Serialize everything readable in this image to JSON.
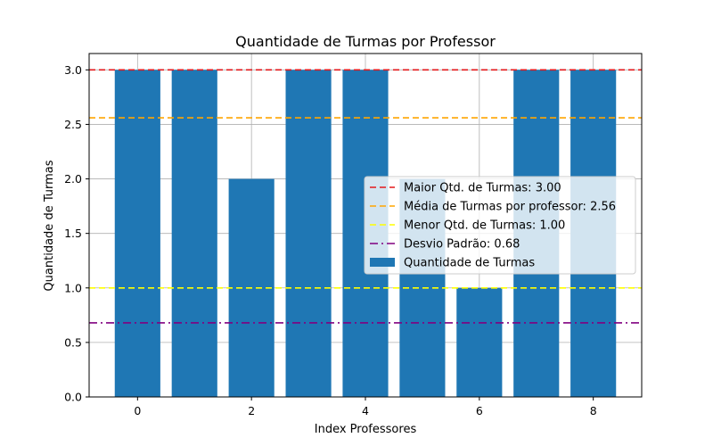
{
  "chart_data": {
    "type": "bar",
    "title": "Quantidade de Turmas por Professor",
    "xlabel": "Index Professores",
    "ylabel": "Quantidade de Turmas",
    "x": [
      0,
      1,
      2,
      3,
      4,
      5,
      6,
      7,
      8
    ],
    "series": [
      {
        "name": "Quantidade de Turmas",
        "values": [
          3,
          3,
          2,
          3,
          3,
          2,
          1,
          3,
          3
        ],
        "color": "#1f77b4"
      }
    ],
    "xlim": [
      -0.85,
      8.85
    ],
    "ylim": [
      0,
      3.15
    ],
    "xticks": [
      "0",
      "2",
      "4",
      "6",
      "8"
    ],
    "yticks": [
      "0.0",
      "0.5",
      "1.0",
      "1.5",
      "2.0",
      "2.5",
      "3.0"
    ],
    "grid": true,
    "legend_position": "center-right",
    "reference_lines": [
      {
        "label": "Maior Qtd. de Turmas: 3.00",
        "value": 3.0,
        "color": "#e41a1c",
        "style": "dashed"
      },
      {
        "label": "Média de Turmas por professor: 2.56",
        "value": 2.56,
        "color": "#ffa500",
        "style": "dashed"
      },
      {
        "label": "Menor Qtd. de Turmas: 1.00",
        "value": 1.0,
        "color": "#ffff00",
        "style": "dashed"
      },
      {
        "label": "Desvio Padrão: 0.68",
        "value": 0.68,
        "color": "#800080",
        "style": "dashdot"
      }
    ]
  }
}
